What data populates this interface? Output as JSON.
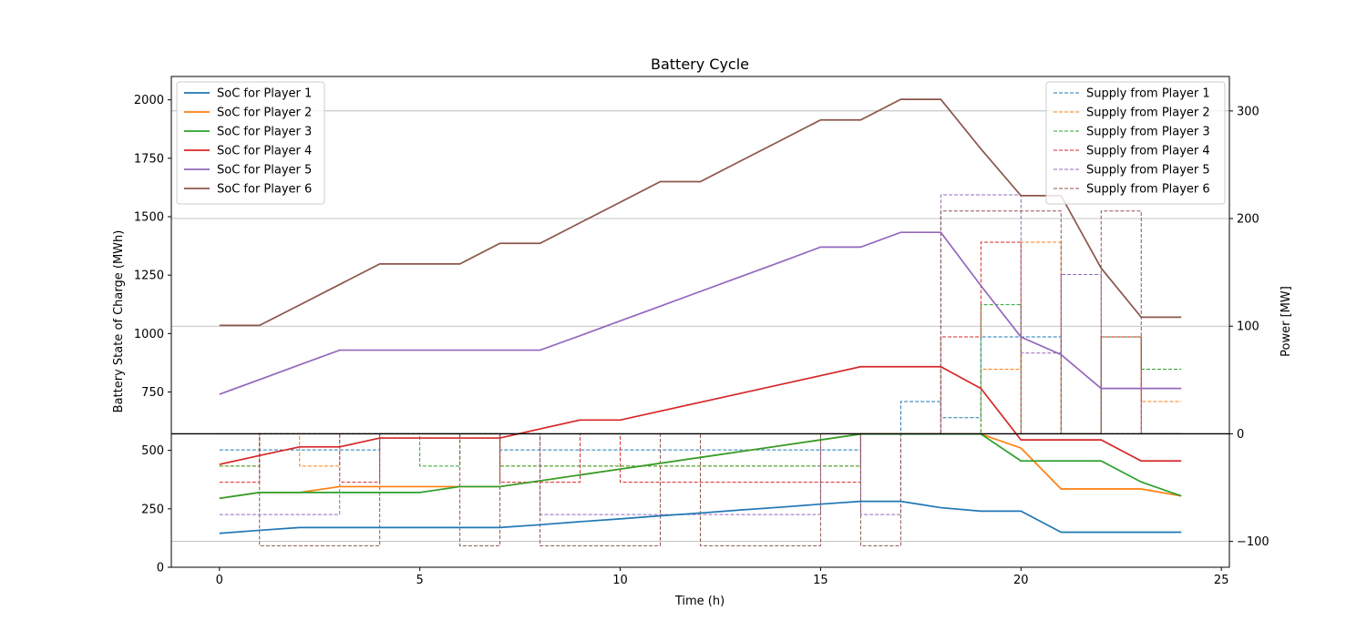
{
  "chart_data": {
    "type": "line",
    "title": "Battery Cycle",
    "xlabel": "Time (h)",
    "ylabel_left": "Battery State of Charge (MWh)",
    "ylabel_right": "Power [MW]",
    "xlim": [
      -1.2,
      25.2
    ],
    "ylim_left": [
      0,
      2100
    ],
    "ylim_right": [
      -124,
      332
    ],
    "x_ticks": [
      0,
      5,
      10,
      15,
      20,
      25
    ],
    "y_ticks_left": [
      0,
      250,
      500,
      750,
      1000,
      1250,
      1500,
      1750,
      2000
    ],
    "y_ticks_right": [
      -100,
      0,
      100,
      200,
      300
    ],
    "grid": "horizontal lines at right-axis ticks",
    "zero_line_right": 0,
    "legend_left": "upper-left",
    "legend_right": "upper-right",
    "colors": [
      "#1f77b4",
      "#ff7f0e",
      "#2ca02c",
      "#d62728",
      "#9467bd",
      "#8c564b"
    ],
    "x": [
      0,
      1,
      2,
      3,
      4,
      5,
      6,
      7,
      8,
      9,
      10,
      11,
      12,
      13,
      14,
      15,
      16,
      17,
      18,
      19,
      20,
      21,
      22,
      23,
      24
    ],
    "soc_series": [
      {
        "name": "SoC for Player 1",
        "values": [
          145,
          158,
          170,
          170,
          170,
          170,
          170,
          170,
          182,
          195,
          207,
          220,
          232,
          245,
          257,
          270,
          282,
          282,
          255,
          240,
          240,
          150,
          150,
          150,
          150
        ]
      },
      {
        "name": "SoC for Player 2",
        "values": [
          295,
          320,
          320,
          345,
          345,
          345,
          345,
          345,
          370,
          395,
          420,
          445,
          470,
          495,
          520,
          545,
          570,
          570,
          570,
          570,
          510,
          335,
          335,
          335,
          305
        ]
      },
      {
        "name": "SoC for Player 3",
        "values": [
          295,
          320,
          320,
          320,
          320,
          320,
          345,
          345,
          370,
          395,
          420,
          445,
          470,
          495,
          520,
          545,
          570,
          570,
          570,
          570,
          455,
          455,
          455,
          365,
          305
        ]
      },
      {
        "name": "SoC for Player 4",
        "values": [
          440,
          478,
          515,
          515,
          553,
          553,
          553,
          553,
          592,
          630,
          630,
          668,
          706,
          744,
          782,
          820,
          858,
          858,
          858,
          765,
          545,
          545,
          545,
          455,
          455
        ]
      },
      {
        "name": "SoC for Player 5",
        "values": [
          740,
          803,
          866,
          929,
          929,
          929,
          929,
          929,
          929,
          991,
          1054,
          1117,
          1180,
          1243,
          1306,
          1370,
          1370,
          1433,
          1433,
          1205,
          985,
          910,
          765,
          765,
          765
        ]
      },
      {
        "name": "SoC for Player 6",
        "values": [
          1035,
          1035,
          1122,
          1210,
          1298,
          1298,
          1298,
          1386,
          1386,
          1474,
          1562,
          1650,
          1650,
          1738,
          1826,
          1914,
          1914,
          2002,
          2002,
          1790,
          1590,
          1590,
          1280,
          1070,
          1070
        ]
      }
    ],
    "supply_series": [
      {
        "name": "Supply from Player 1",
        "values": [
          -15,
          -15,
          -15,
          -15,
          0,
          0,
          0,
          -15,
          -15,
          -15,
          -15,
          -15,
          -15,
          -15,
          -15,
          -15,
          0,
          30,
          15,
          90,
          90,
          0,
          0,
          0
        ]
      },
      {
        "name": "Supply from Player 2",
        "values": [
          -30,
          0,
          -30,
          0,
          0,
          0,
          0,
          -30,
          -30,
          -30,
          -30,
          -30,
          -30,
          -30,
          -30,
          -30,
          0,
          0,
          0,
          60,
          178,
          0,
          90,
          30
        ]
      },
      {
        "name": "Supply from Player 3",
        "values": [
          -30,
          0,
          0,
          0,
          0,
          -30,
          0,
          -30,
          -30,
          -30,
          -30,
          -30,
          -30,
          -30,
          -30,
          -30,
          0,
          0,
          0,
          120,
          0,
          0,
          90,
          60
        ]
      },
      {
        "name": "Supply from Player 4",
        "values": [
          -45,
          0,
          0,
          -45,
          0,
          0,
          0,
          -45,
          -45,
          0,
          -45,
          -45,
          -45,
          -45,
          -45,
          -45,
          0,
          0,
          90,
          178,
          0,
          0,
          90,
          0
        ]
      },
      {
        "name": "Supply from Player 5",
        "values": [
          -75,
          -75,
          -75,
          0,
          0,
          0,
          0,
          0,
          -75,
          -75,
          -75,
          -75,
          -75,
          -75,
          -75,
          0,
          -75,
          0,
          222,
          222,
          75,
          148,
          0,
          0
        ]
      },
      {
        "name": "Supply from Player 6",
        "values": [
          0,
          -104,
          -104,
          -104,
          0,
          0,
          -104,
          0,
          -104,
          -104,
          -104,
          0,
          -104,
          -104,
          -104,
          0,
          -104,
          0,
          207,
          207,
          207,
          0,
          207,
          0
        ]
      }
    ]
  }
}
